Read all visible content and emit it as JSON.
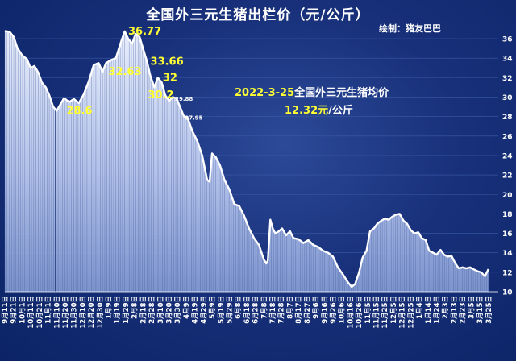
{
  "chart_data": {
    "type": "area",
    "title": "全国外三元生猪出栏价（元/公斤）",
    "subtitle": "绘制：猪友巴巴",
    "annotation": {
      "date": "2022-3-25",
      "text": "全国外三元生猪均价",
      "value": "12.32",
      "unit_yellow": "元",
      "unit_white": "/公斤"
    },
    "ylim": [
      10,
      37
    ],
    "yticks": [
      10,
      12,
      14,
      16,
      18,
      20,
      22,
      24,
      26,
      28,
      30,
      32,
      34,
      36
    ],
    "xlim": [
      0,
      100
    ],
    "x_tick_labels": [
      "9月11日",
      "9月21日",
      "10月1日",
      "10月11日",
      "10月21日",
      "11月1日",
      "11月10日",
      "11月20日",
      "11月30日",
      "12月10日",
      "12月20日",
      "12月30日",
      "1月9日",
      "1月19日",
      "1月29日",
      "2月8日",
      "2月18日",
      "2月28日",
      "3月10日",
      "3月20日",
      "3月30日",
      "4月9日",
      "4月19日",
      "4月29日",
      "5月9日",
      "5月19日",
      "5月29日",
      "6月8日",
      "6月18日",
      "6月28日",
      "7月8日",
      "7月18日",
      "7月28日",
      "8月7日",
      "8月17日",
      "8月27日",
      "9月6日",
      "9月16日",
      "9月26日",
      "10月6日",
      "10月16日",
      "10月26日",
      "11月5日",
      "11月15日",
      "11月25日",
      "12月5日",
      "12月15日",
      "12月25日",
      "1月4日",
      "1月14日",
      "1月24日",
      "2月3日",
      "2月13日",
      "2月23日",
      "3月5日",
      "3月15日",
      "3月25日"
    ],
    "data_labels": [
      {
        "x": 25.0,
        "y": 36.77,
        "text": "36.77",
        "color": "#ffff33",
        "size": "large"
      },
      {
        "x": 21.0,
        "y": 32.63,
        "text": "32.63",
        "color": "#ffff33",
        "size": "large"
      },
      {
        "x": 29.5,
        "y": 33.66,
        "text": "33.66",
        "color": "#ffff33",
        "size": "large"
      },
      {
        "x": 32.0,
        "y": 32.0,
        "text": "32",
        "color": "#ffff33",
        "size": "large"
      },
      {
        "x": 12.5,
        "y": 28.6,
        "text": "28.6",
        "color": "#ffff33",
        "size": "large"
      },
      {
        "x": 29.0,
        "y": 30.2,
        "text": "30.2",
        "color": "#ffff33",
        "size": "large"
      },
      {
        "x": 34.5,
        "y": 29.88,
        "text": "29.88",
        "color": "#ffffff",
        "size": "small"
      },
      {
        "x": 36.5,
        "y": 27.95,
        "text": "27.95",
        "color": "#ffffff",
        "size": "small"
      }
    ],
    "series": [
      {
        "points": [
          [
            0,
            36.8
          ],
          [
            1,
            36.7
          ],
          [
            1.8,
            36.2
          ],
          [
            2.5,
            35.1
          ],
          [
            3.5,
            34.3
          ],
          [
            4.5,
            33.9
          ],
          [
            5.2,
            33.0
          ],
          [
            6,
            33.2
          ],
          [
            6.8,
            32.5
          ],
          [
            7.5,
            31.5
          ],
          [
            8.3,
            31.0
          ],
          [
            9,
            30.2
          ],
          [
            9.8,
            29.0
          ],
          [
            10.5,
            28.6
          ],
          [
            11.3,
            29.3
          ],
          [
            12,
            29.9
          ],
          [
            13,
            29.5
          ],
          [
            14,
            29.8
          ],
          [
            15,
            29.4
          ],
          [
            16,
            30.3
          ],
          [
            17,
            31.6
          ],
          [
            18,
            33.3
          ],
          [
            19,
            33.5
          ],
          [
            19.8,
            32.6
          ],
          [
            20.5,
            33.5
          ],
          [
            21.5,
            33.8
          ],
          [
            22.5,
            34.0
          ],
          [
            23.5,
            35.6
          ],
          [
            24.3,
            36.77
          ],
          [
            25,
            36.0
          ],
          [
            25.8,
            35.5
          ],
          [
            26.5,
            36.5
          ],
          [
            27.3,
            36.2
          ],
          [
            28,
            35.0
          ],
          [
            28.8,
            33.66
          ],
          [
            29.5,
            32.2
          ],
          [
            30.3,
            31.0
          ],
          [
            31,
            32.0
          ],
          [
            31.8,
            31.5
          ],
          [
            32.5,
            30.2
          ],
          [
            33.3,
            29.6
          ],
          [
            34,
            30.0
          ],
          [
            34.8,
            29.88
          ],
          [
            35.5,
            29.0
          ],
          [
            36.3,
            28.0
          ],
          [
            37,
            27.95
          ],
          [
            38,
            26.5
          ],
          [
            39,
            25.5
          ],
          [
            40,
            24.0
          ],
          [
            41,
            21.5
          ],
          [
            41.5,
            21.3
          ],
          [
            42,
            24.2
          ],
          [
            42.8,
            23.8
          ],
          [
            43.6,
            23.0
          ],
          [
            44.5,
            21.5
          ],
          [
            45.5,
            20.5
          ],
          [
            46.5,
            19.0
          ],
          [
            47.5,
            18.8
          ],
          [
            48.5,
            17.8
          ],
          [
            49.5,
            16.5
          ],
          [
            50.5,
            15.5
          ],
          [
            51.5,
            14.8
          ],
          [
            52.5,
            13.3
          ],
          [
            53,
            12.9
          ],
          [
            53.3,
            13.2
          ],
          [
            53.8,
            17.4
          ],
          [
            54.3,
            16.5
          ],
          [
            54.8,
            16.0
          ],
          [
            55.5,
            16.2
          ],
          [
            56.2,
            16.5
          ],
          [
            57,
            15.8
          ],
          [
            57.8,
            16.2
          ],
          [
            58.5,
            15.5
          ],
          [
            59.5,
            15.4
          ],
          [
            60.5,
            15.0
          ],
          [
            61.5,
            15.3
          ],
          [
            62.5,
            14.8
          ],
          [
            63.5,
            14.6
          ],
          [
            64.5,
            14.2
          ],
          [
            65.5,
            14.0
          ],
          [
            66.5,
            13.6
          ],
          [
            67.5,
            12.5
          ],
          [
            68.5,
            11.8
          ],
          [
            69.5,
            11.0
          ],
          [
            70.3,
            10.5
          ],
          [
            71,
            10.8
          ],
          [
            71.8,
            12.0
          ],
          [
            72.5,
            13.5
          ],
          [
            73.3,
            14.2
          ],
          [
            74,
            16.2
          ],
          [
            74.8,
            16.5
          ],
          [
            75.5,
            17.0
          ],
          [
            76.3,
            17.3
          ],
          [
            77,
            17.5
          ],
          [
            77.8,
            17.4
          ],
          [
            78.5,
            17.7
          ],
          [
            79.2,
            17.9
          ],
          [
            80,
            18.0
          ],
          [
            80.8,
            17.3
          ],
          [
            81.5,
            17.0
          ],
          [
            82.3,
            16.3
          ],
          [
            83,
            16.0
          ],
          [
            83.8,
            16.1
          ],
          [
            84.5,
            15.5
          ],
          [
            85.3,
            15.3
          ],
          [
            86,
            14.2
          ],
          [
            86.8,
            14.0
          ],
          [
            87.5,
            13.8
          ],
          [
            88.3,
            14.3
          ],
          [
            89,
            13.8
          ],
          [
            89.8,
            13.6
          ],
          [
            90.5,
            13.7
          ],
          [
            91.3,
            12.9
          ],
          [
            92,
            12.4
          ],
          [
            92.8,
            12.5
          ],
          [
            93.5,
            12.4
          ],
          [
            94.3,
            12.5
          ],
          [
            95,
            12.3
          ],
          [
            95.8,
            12.1
          ],
          [
            96.5,
            12.0
          ],
          [
            97.3,
            11.6
          ],
          [
            98,
            12.32
          ]
        ]
      }
    ]
  }
}
